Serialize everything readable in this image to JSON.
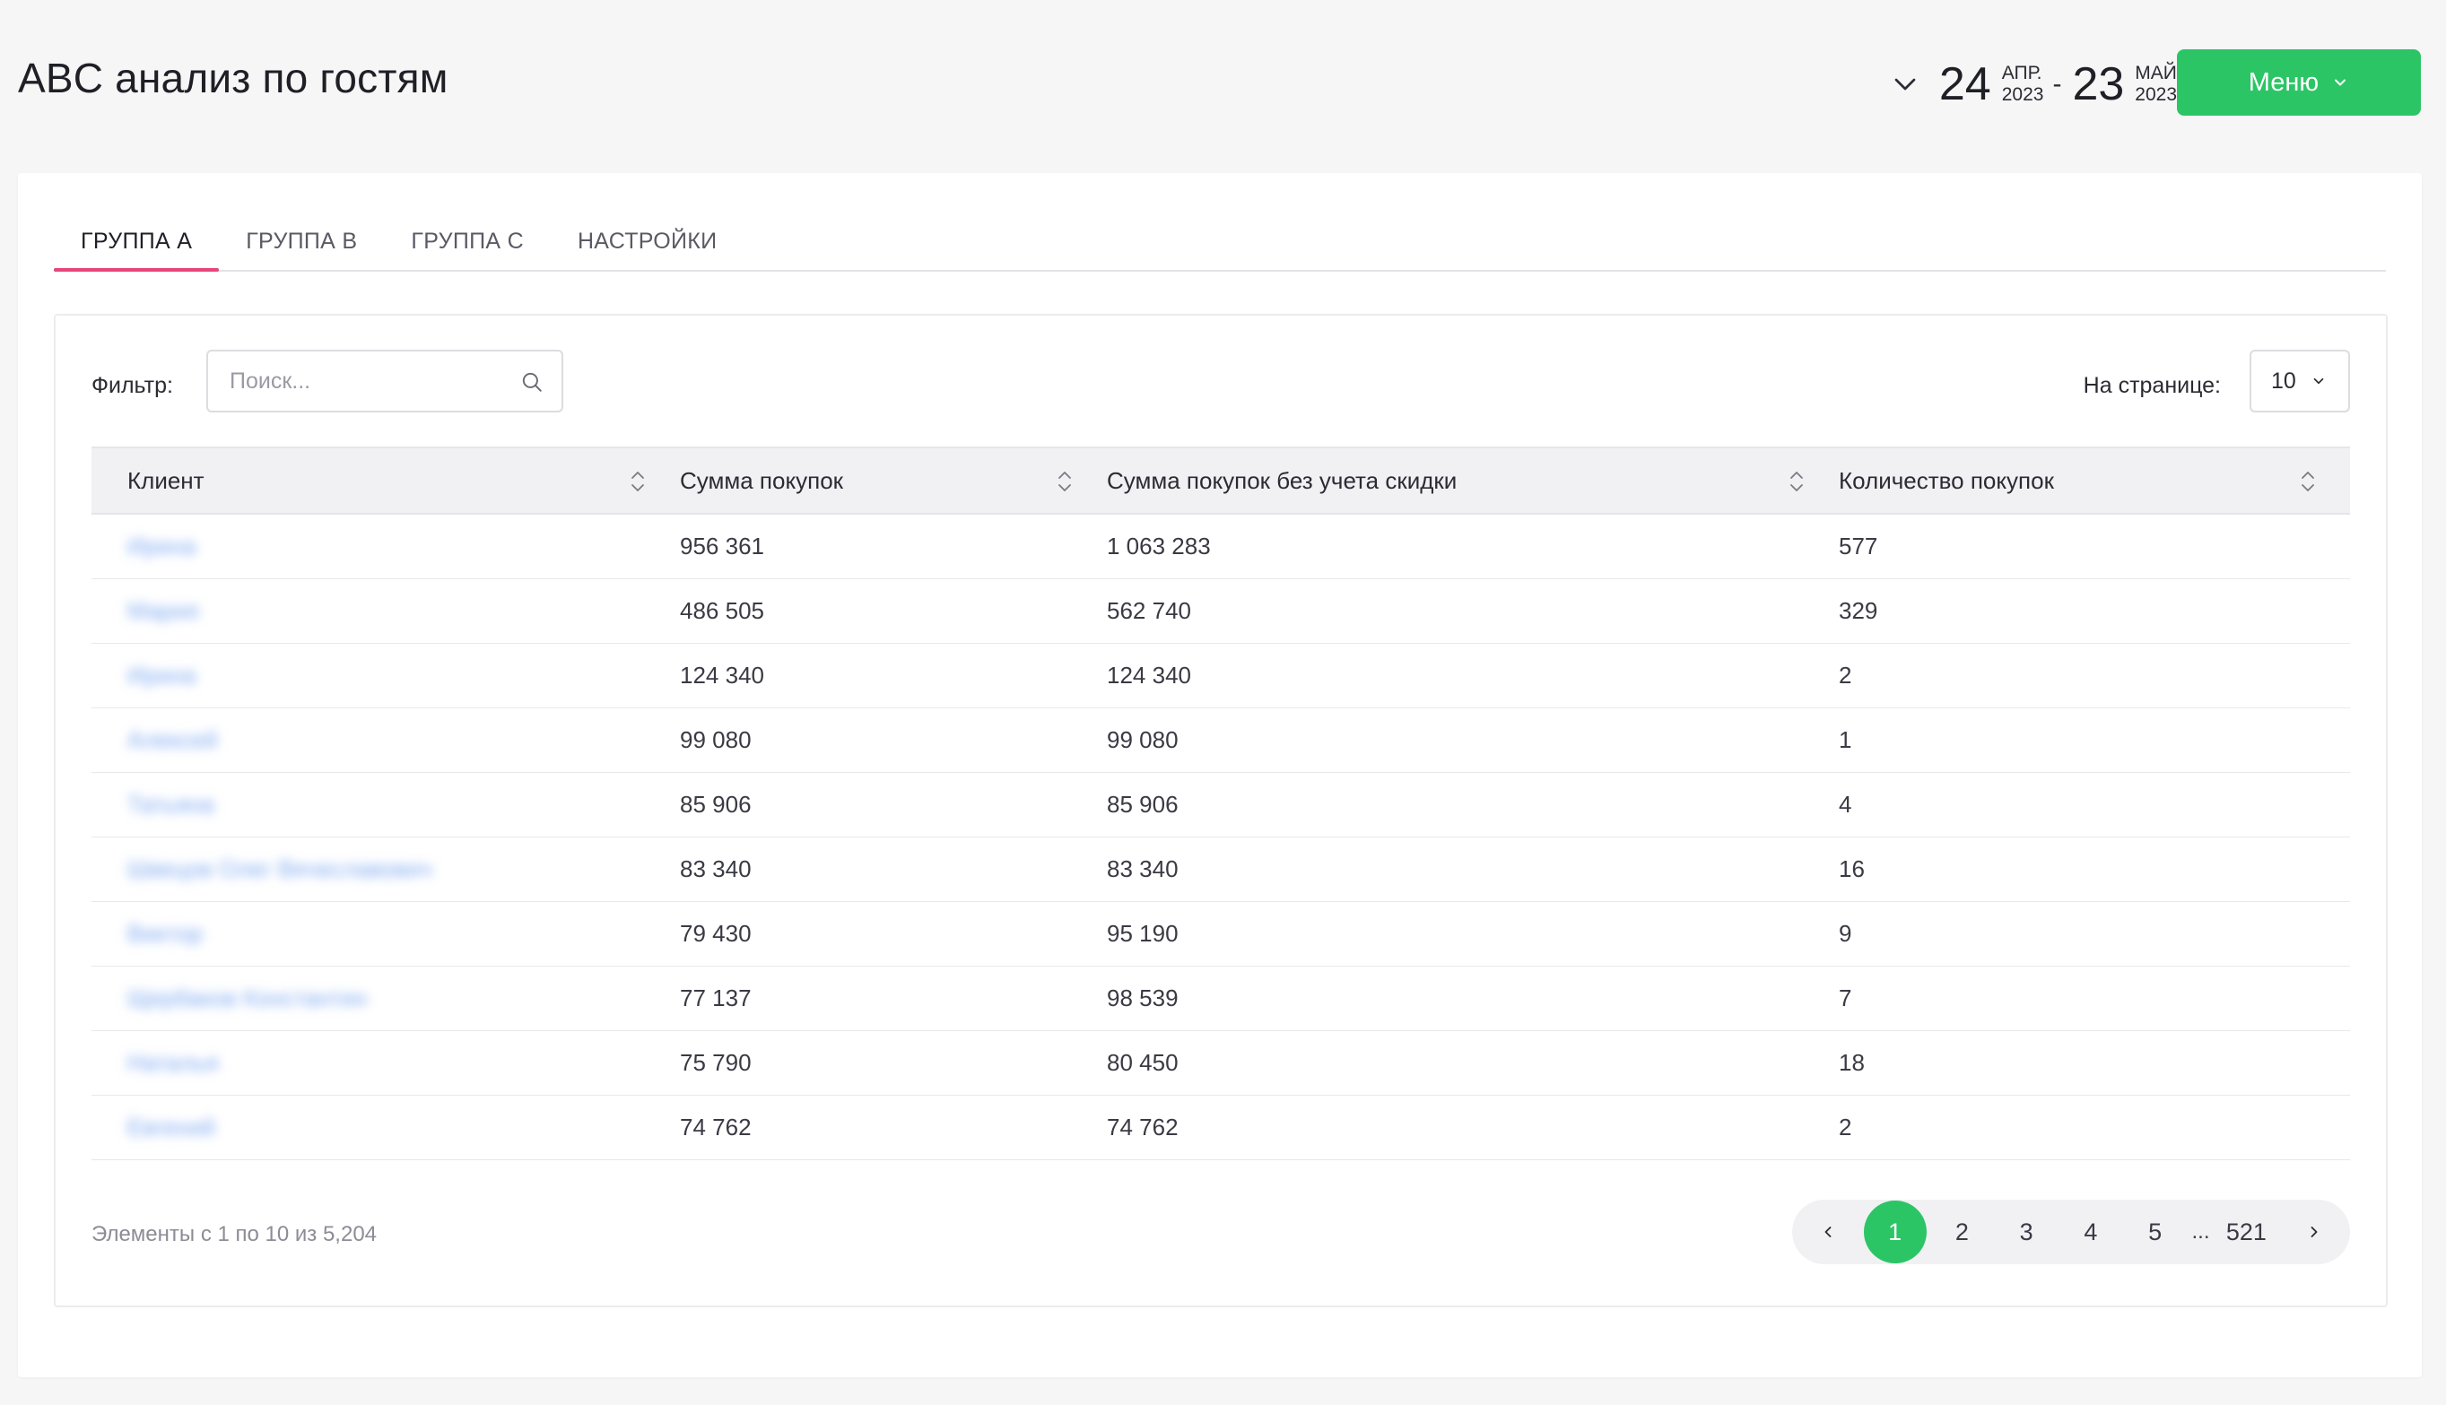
{
  "header": {
    "title": "ABC анализ по гостям",
    "date_start": {
      "day": "24",
      "month": "АПР.",
      "year": "2023"
    },
    "date_separator": "-",
    "date_end": {
      "day": "23",
      "month": "МАЙ",
      "year": "2023"
    },
    "menu_label": "Меню"
  },
  "tabs": [
    {
      "label": "ГРУППА A",
      "active": true
    },
    {
      "label": "ГРУППА B",
      "active": false
    },
    {
      "label": "ГРУППА C",
      "active": false
    },
    {
      "label": "НАСТРОЙКИ",
      "active": false
    }
  ],
  "filter": {
    "label": "Фильтр:",
    "placeholder": "Поиск...",
    "value": ""
  },
  "per_page": {
    "label": "На странице:",
    "value": "10"
  },
  "table": {
    "columns": [
      "Клиент",
      "Сумма покупок",
      "Сумма покупок без учета скидки",
      "Количество покупок"
    ],
    "rows": [
      {
        "client": "Ирина",
        "sum": "956 361",
        "sum_no_discount": "1 063 283",
        "count": "577"
      },
      {
        "client": "Мария",
        "sum": "486 505",
        "sum_no_discount": "562 740",
        "count": "329"
      },
      {
        "client": "Ирина",
        "sum": "124 340",
        "sum_no_discount": "124 340",
        "count": "2"
      },
      {
        "client": "Алексей",
        "sum": "99 080",
        "sum_no_discount": "99 080",
        "count": "1"
      },
      {
        "client": "Татьяна",
        "sum": "85 906",
        "sum_no_discount": "85 906",
        "count": "4"
      },
      {
        "client": "Швецов Олег Вячеславович",
        "sum": "83 340",
        "sum_no_discount": "83 340",
        "count": "16"
      },
      {
        "client": "Виктор",
        "sum": "79 430",
        "sum_no_discount": "95 190",
        "count": "9"
      },
      {
        "client": "Щербаков Константин",
        "sum": "77 137",
        "sum_no_discount": "98 539",
        "count": "7"
      },
      {
        "client": "Наталья",
        "sum": "75 790",
        "sum_no_discount": "80 450",
        "count": "18"
      },
      {
        "client": "Евгений",
        "sum": "74 762",
        "sum_no_discount": "74 762",
        "count": "2"
      }
    ]
  },
  "footer": {
    "info": "Элементы с 1 по 10 из 5,204"
  },
  "pagination": {
    "pages": [
      "1",
      "2",
      "3",
      "4",
      "5"
    ],
    "active": "1",
    "ellipsis": "...",
    "last": "521"
  },
  "colors": {
    "accent_green": "#2cc565",
    "tab_underline": "#e6467a",
    "client_link": "#7aa6f0"
  }
}
